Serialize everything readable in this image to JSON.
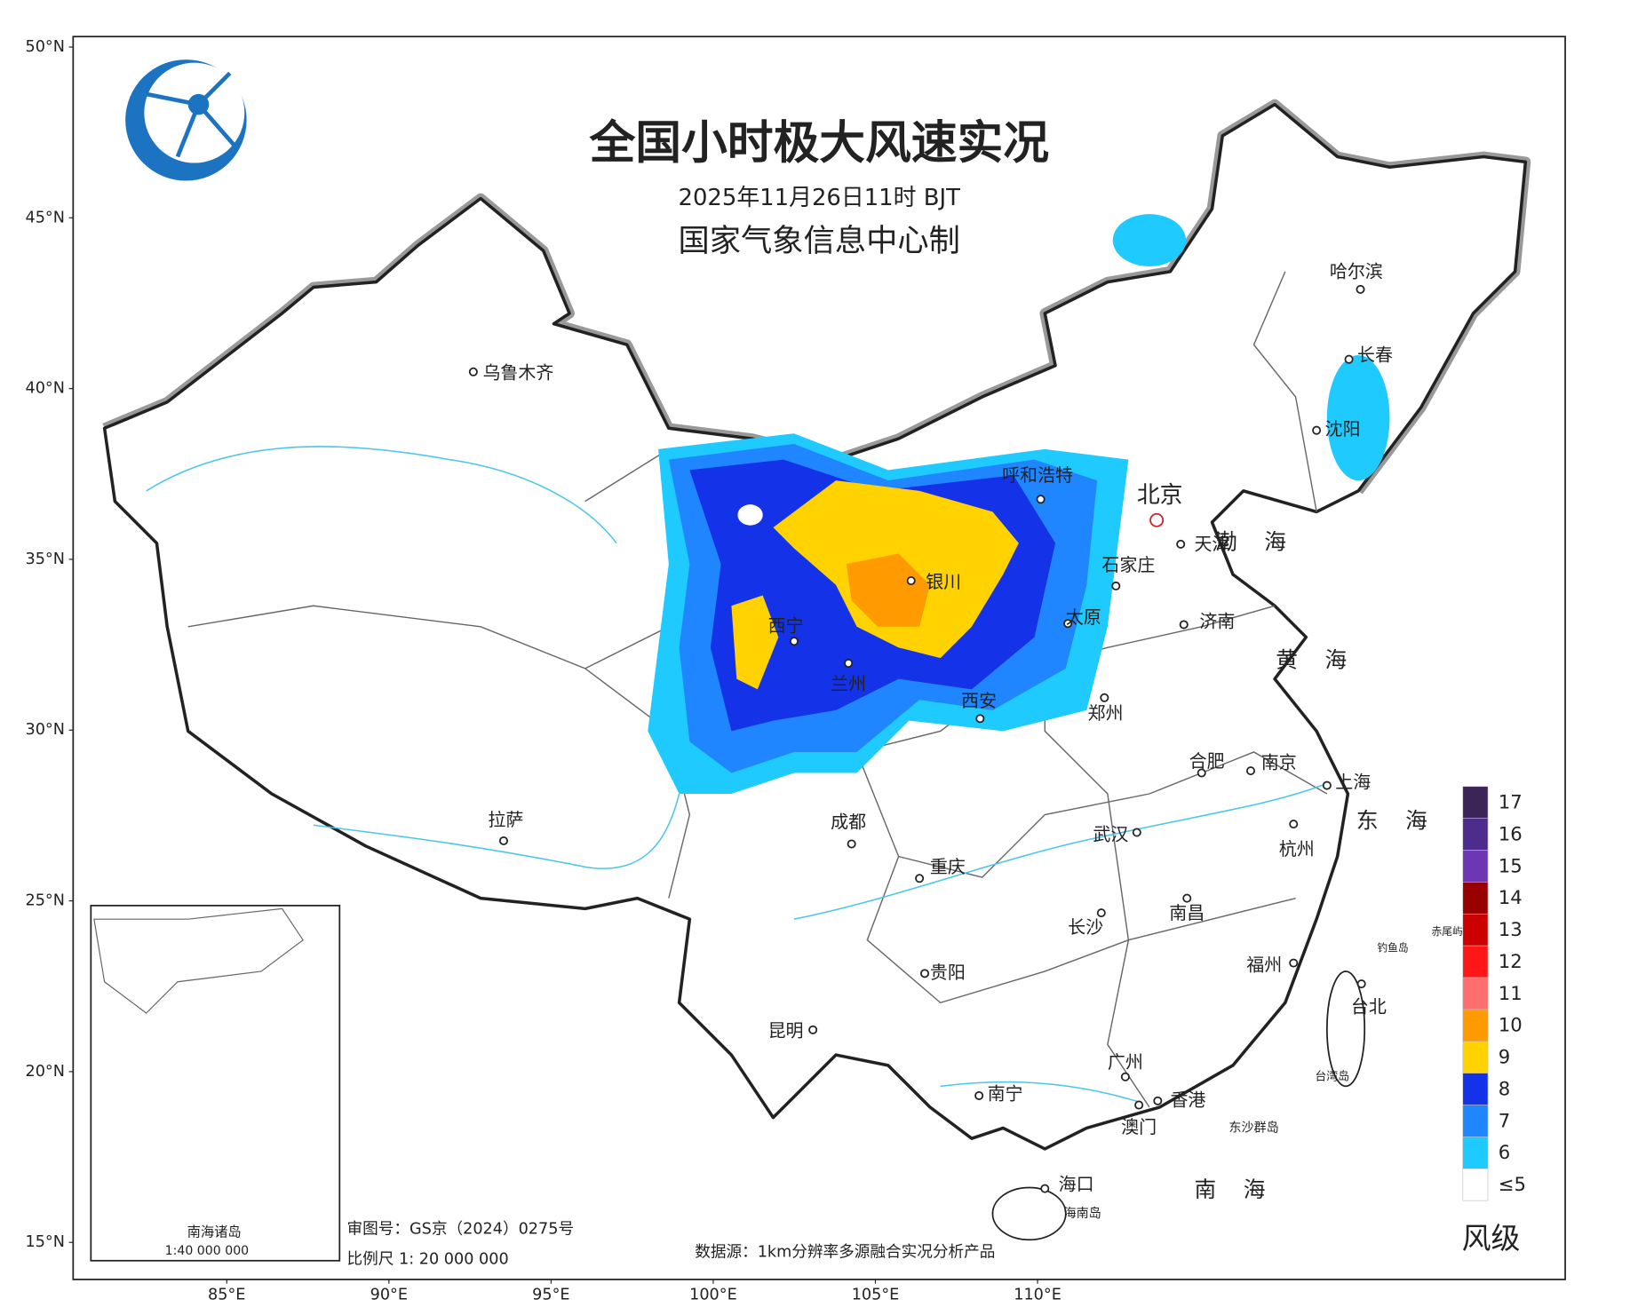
{
  "header": {
    "title": "全国小时极大风速实况",
    "subtitle": "2025年11月26日11时 BJT",
    "producer": "国家气象信息中心制"
  },
  "axes": {
    "lat_labels": [
      {
        "value": 50,
        "label": "50°N"
      },
      {
        "value": 45,
        "label": "45°N"
      },
      {
        "value": 40,
        "label": "40°N"
      },
      {
        "value": 35,
        "label": "35°N"
      },
      {
        "value": 30,
        "label": "30°N"
      },
      {
        "value": 25,
        "label": "25°N"
      },
      {
        "value": 20,
        "label": "20°N"
      },
      {
        "value": 15,
        "label": "15°N"
      }
    ],
    "lon_labels": [
      {
        "value": 85,
        "label": "85°E"
      },
      {
        "value": 90,
        "label": "90°E"
      },
      {
        "value": 95,
        "label": "95°E"
      },
      {
        "value": 100,
        "label": "100°E"
      },
      {
        "value": 105,
        "label": "105°E"
      },
      {
        "value": 110,
        "label": "110°E"
      }
    ]
  },
  "capital": "北京",
  "cities": [
    "乌鲁木齐",
    "呼和浩特",
    "天津",
    "石家庄",
    "太原",
    "济南",
    "银川",
    "西宁",
    "兰州",
    "西安",
    "郑州",
    "合肥",
    "南京",
    "上海",
    "杭州",
    "拉萨",
    "成都",
    "武汉",
    "重庆",
    "长沙",
    "南昌",
    "贵阳",
    "福州",
    "台北",
    "昆明",
    "广州",
    "南宁",
    "香港",
    "澳门",
    "海口",
    "哈尔滨",
    "长春",
    "沈阳"
  ],
  "seas": [
    "渤海",
    "黄海",
    "东海",
    "南海"
  ],
  "islands": [
    "钓鱼岛",
    "赤尾屿",
    "台湾岛",
    "东沙群岛",
    "海南岛"
  ],
  "inset": {
    "title": "南海诸岛",
    "scale": "1:40 000 000"
  },
  "notes": {
    "approval": "审图号：GS京（2024）0275号",
    "scale": "比例尺 1: 20 000 000",
    "source": "数据源：1km分辨率多源融合实况分析产品"
  },
  "legend": {
    "title": "风级",
    "levels": [
      {
        "label": "17",
        "color": "#3b2458"
      },
      {
        "label": "16",
        "color": "#4e2c8c"
      },
      {
        "label": "15",
        "color": "#6d37b4"
      },
      {
        "label": "14",
        "color": "#990000"
      },
      {
        "label": "13",
        "color": "#cc0000"
      },
      {
        "label": "12",
        "color": "#ff1717"
      },
      {
        "label": "11",
        "color": "#ff6e6e"
      },
      {
        "label": "10",
        "color": "#ff9a00"
      },
      {
        "label": "9",
        "color": "#ffd200"
      },
      {
        "label": "8",
        "color": "#1432e8"
      },
      {
        "label": "7",
        "color": "#1f86ff"
      },
      {
        "label": "6",
        "color": "#1fcaff"
      },
      {
        "label": "≤5",
        "color": "#ffffff"
      }
    ]
  }
}
